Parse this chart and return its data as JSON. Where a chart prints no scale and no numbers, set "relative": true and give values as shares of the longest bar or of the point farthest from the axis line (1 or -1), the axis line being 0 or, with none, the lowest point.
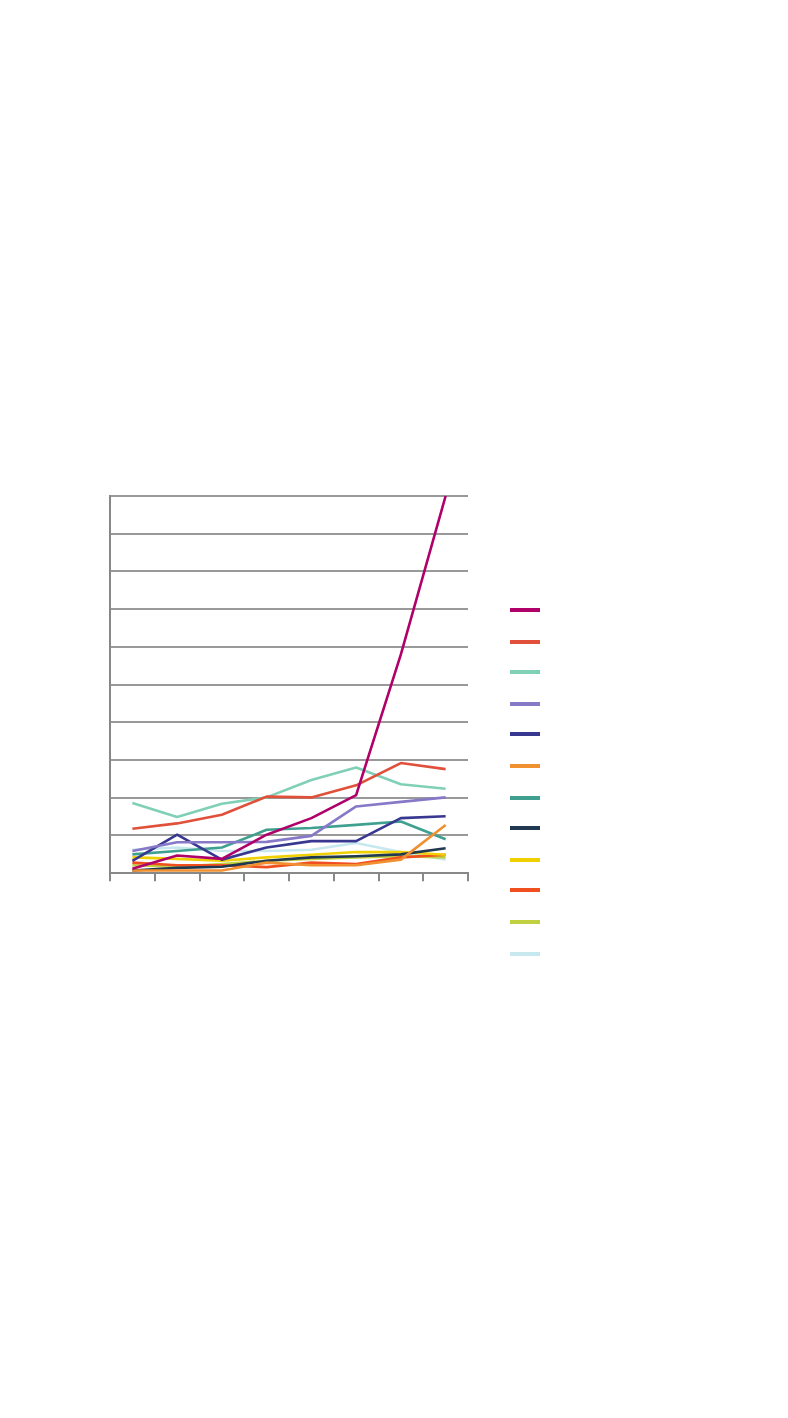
{
  "chart_data": {
    "type": "line",
    "relative": true,
    "grid": "y",
    "marker": "none",
    "line_style": "solid",
    "categories": [
      null,
      null,
      null,
      null,
      null,
      null,
      null,
      null
    ],
    "series": [
      {
        "color": "#b0006a",
        "values": [
          0.012,
          0.047,
          0.038,
          0.102,
          0.146,
          0.207,
          0.58,
          1.0
        ]
      },
      {
        "color": "#e0503a",
        "values": [
          0.118,
          0.132,
          0.155,
          0.203,
          0.201,
          0.233,
          0.292,
          0.276
        ]
      },
      {
        "color": "#80d0b8",
        "values": [
          0.186,
          0.149,
          0.184,
          0.201,
          0.247,
          0.28,
          0.236,
          0.224
        ]
      },
      {
        "color": "#8878c8",
        "values": [
          0.059,
          0.082,
          0.082,
          0.083,
          0.099,
          0.177,
          0.189,
          0.201
        ]
      },
      {
        "color": "#383890",
        "values": [
          0.033,
          0.102,
          0.036,
          0.068,
          0.085,
          0.085,
          0.146,
          0.151
        ]
      },
      {
        "color": "#f09030",
        "values": [
          0.007,
          0.007,
          0.007,
          0.028,
          0.021,
          0.021,
          0.036,
          0.128
        ]
      },
      {
        "color": "#40a090",
        "values": [
          0.05,
          0.059,
          0.068,
          0.115,
          0.12,
          0.128,
          0.137,
          0.09
        ]
      },
      {
        "color": "#203850",
        "values": [
          0.007,
          0.014,
          0.017,
          0.033,
          0.042,
          0.045,
          0.05,
          0.066
        ]
      },
      {
        "color": "#f0d000",
        "values": [
          0.042,
          0.038,
          0.033,
          0.042,
          0.049,
          0.056,
          0.056,
          0.049
        ]
      },
      {
        "color": "#f05020",
        "values": [
          0.028,
          0.021,
          0.021,
          0.016,
          0.028,
          0.024,
          0.042,
          0.049
        ]
      },
      {
        "color": "#c0d040",
        "values": [
          0.021,
          0.017,
          0.024,
          0.033,
          0.038,
          0.042,
          0.045,
          0.042
        ]
      },
      {
        "color": "#c8e8f0",
        "values": [
          0.062,
          0.068,
          0.059,
          0.059,
          0.062,
          0.08,
          0.056,
          0.036
        ]
      }
    ]
  }
}
